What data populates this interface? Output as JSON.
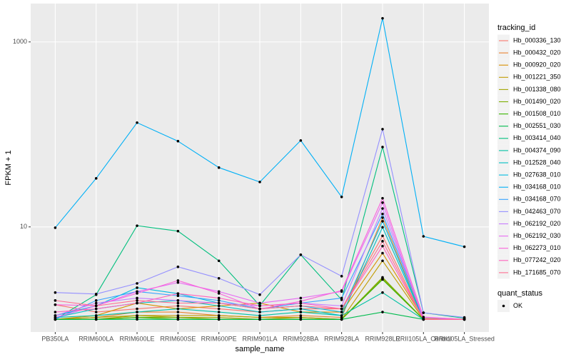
{
  "chart_data": {
    "type": "line",
    "x_label": "sample_name",
    "y_label": "FPKM + 1",
    "log_scale": true,
    "grid": true,
    "categories": [
      "PB350LA",
      "RRIM600LA",
      "RRIM600LE",
      "RRIM600SE",
      "RRIM600PE",
      "RRIM901LA",
      "RRIM928BA",
      "RRIM928LA",
      "RRIM928LE",
      "RRII105LA_Control",
      "RRII105LA_Stressed"
    ],
    "ylim": [
      0.73,
      2600
    ],
    "yticks": [
      10,
      1000
    ],
    "legend_title": "tracking_id",
    "legend_position": "right",
    "point_legend_title": "quant_status",
    "point_legend_label": "OK",
    "point_color": "#000000",
    "series": [
      {
        "name": "Hb_000336_130",
        "color": "#F8766D",
        "values": [
          1.44,
          1.2,
          1.3,
          1.4,
          1.3,
          1.2,
          1.3,
          1.3,
          8.0,
          1.0,
          1.0
        ]
      },
      {
        "name": "Hb_000432_020",
        "color": "#EA8331",
        "values": [
          1.0,
          1.05,
          1.2,
          1.2,
          1.1,
          1.05,
          1.1,
          1.05,
          12.6,
          1.0,
          1.0
        ]
      },
      {
        "name": "Hb_000920_020",
        "color": "#D89000",
        "values": [
          1.0,
          1.1,
          1.5,
          1.3,
          1.4,
          1.5,
          1.2,
          1.2,
          5.2,
          1.02,
          1.0
        ]
      },
      {
        "name": "Hb_001221_350",
        "color": "#C09B00",
        "values": [
          1.0,
          1.0,
          1.1,
          1.1,
          1.1,
          1.05,
          1.05,
          1.0,
          4.3,
          1.0,
          1.0
        ]
      },
      {
        "name": "Hb_001338_080",
        "color": "#A3A500",
        "values": [
          1.0,
          1.05,
          1.1,
          1.05,
          1.05,
          1.0,
          1.05,
          1.0,
          2.78,
          1.0,
          1.0
        ]
      },
      {
        "name": "Hb_001490_020",
        "color": "#7CAE00",
        "values": [
          1.0,
          1.0,
          1.05,
          1.05,
          1.0,
          1.0,
          1.0,
          1.0,
          2.85,
          1.0,
          1.0
        ]
      },
      {
        "name": "Hb_001508_010",
        "color": "#39B600",
        "values": [
          1.0,
          1.0,
          1.05,
          1.0,
          1.0,
          1.0,
          1.0,
          1.0,
          2.7,
          1.0,
          1.0
        ]
      },
      {
        "name": "Hb_002551_030",
        "color": "#00BB4E",
        "values": [
          1.0,
          1.0,
          1.0,
          1.0,
          1.0,
          1.0,
          1.0,
          1.0,
          1.2,
          1.0,
          1.0
        ]
      },
      {
        "name": "Hb_003414_040",
        "color": "#00BF7D",
        "values": [
          1.0,
          1.85,
          10.3,
          9.0,
          4.3,
          1.41,
          5.0,
          1.63,
          73,
          1.18,
          1.03
        ]
      },
      {
        "name": "Hb_004374_090",
        "color": "#00C1A3",
        "values": [
          1.05,
          1.1,
          1.2,
          1.3,
          1.2,
          1.1,
          1.2,
          1.1,
          1.95,
          1.0,
          1.0
        ]
      },
      {
        "name": "Hb_012528_040",
        "color": "#00BFC4",
        "values": [
          1.05,
          1.3,
          1.5,
          1.6,
          1.4,
          1.2,
          1.3,
          1.1,
          9.9,
          1.0,
          1.0
        ]
      },
      {
        "name": "Hb_027638_010",
        "color": "#00BAE0",
        "values": [
          1.1,
          1.4,
          2.2,
          1.9,
          1.5,
          1.3,
          1.4,
          1.2,
          11.5,
          1.0,
          1.0
        ]
      },
      {
        "name": "Hb_034168_010",
        "color": "#00B0F6",
        "values": [
          9.8,
          33.5,
          134,
          84.5,
          43.8,
          30.6,
          86,
          21.1,
          1800,
          7.9,
          6.1
        ]
      },
      {
        "name": "Hb_034168_070",
        "color": "#35A2FF",
        "values": [
          1.0,
          1.6,
          2.0,
          1.8,
          1.6,
          1.3,
          1.5,
          1.7,
          13.8,
          1.05,
          1.0
        ]
      },
      {
        "name": "Hb_042463_070",
        "color": "#9590FF",
        "values": [
          1.95,
          1.88,
          2.45,
          3.7,
          2.78,
          1.85,
          5.0,
          2.93,
          114,
          1.18,
          1.05
        ]
      },
      {
        "name": "Hb_062192_020",
        "color": "#C77CFF",
        "values": [
          1.1,
          1.5,
          1.7,
          1.6,
          1.5,
          1.4,
          1.5,
          1.4,
          15.8,
          1.05,
          1.0
        ]
      },
      {
        "name": "Hb_062192_030",
        "color": "#E76BF3",
        "values": [
          1.05,
          1.4,
          2.0,
          2.5,
          2.0,
          1.5,
          1.7,
          2.0,
          18.3,
          1.0,
          1.0
        ]
      },
      {
        "name": "Hb_062273_010",
        "color": "#FA62DB",
        "values": [
          1.44,
          1.41,
          1.91,
          2.63,
          1.91,
          1.29,
          1.57,
          2.05,
          20.4,
          1.06,
          1.0
        ]
      },
      {
        "name": "Hb_077242_020",
        "color": "#FF62BC",
        "values": [
          1.2,
          1.3,
          1.5,
          1.9,
          1.7,
          1.4,
          1.5,
          1.3,
          6.2,
          1.0,
          1.0
        ]
      },
      {
        "name": "Hb_171685_070",
        "color": "#FF6C91",
        "values": [
          1.6,
          1.4,
          1.6,
          1.5,
          1.5,
          1.3,
          1.4,
          1.3,
          7.0,
          1.0,
          1.0
        ]
      }
    ]
  }
}
